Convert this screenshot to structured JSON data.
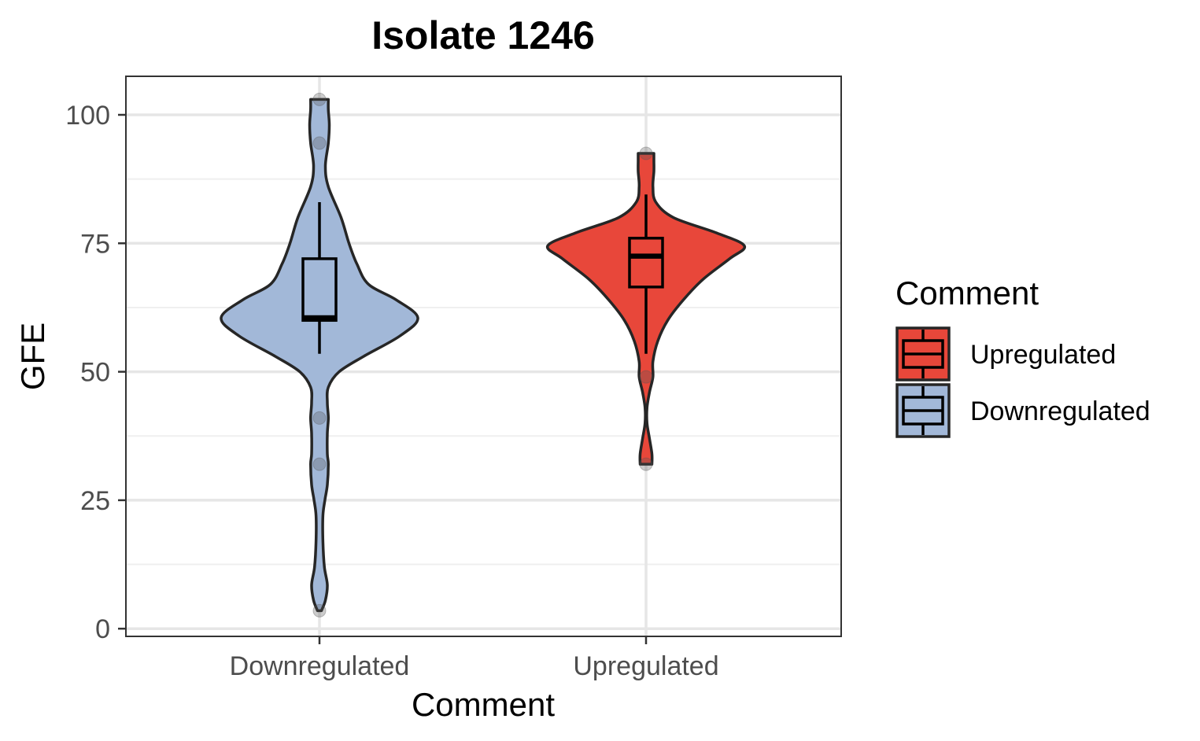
{
  "chart_data": {
    "type": "violin",
    "title": "Isolate 1246",
    "xlabel": "Comment",
    "ylabel": "GFE",
    "ylim": [
      -1.5,
      107.5
    ],
    "yticks": [
      0,
      25,
      50,
      75,
      100
    ],
    "categories": [
      "Downregulated",
      "Upregulated"
    ],
    "grid": true,
    "legend": {
      "title": "Comment",
      "position": "right",
      "entries": [
        {
          "label": "Upregulated",
          "color": "#E8473A"
        },
        {
          "label": "Downregulated",
          "color": "#A2B8D8"
        }
      ]
    },
    "series": [
      {
        "name": "Downregulated",
        "color": "#A2B8D8",
        "box": {
          "min": 53.5,
          "q1": 60,
          "median": 60.5,
          "q3": 72,
          "max": 83
        },
        "points": [
          103,
          94.5,
          41,
          32,
          3.5
        ],
        "violin_range": [
          3.5,
          103
        ],
        "density": [
          [
            3.5,
            0.02
          ],
          [
            5.5,
            0.06
          ],
          [
            8.5,
            0.08
          ],
          [
            12,
            0.05
          ],
          [
            17,
            0.035
          ],
          [
            22,
            0.035
          ],
          [
            25,
            0.055
          ],
          [
            28,
            0.08
          ],
          [
            32,
            0.09
          ],
          [
            34,
            0.08
          ],
          [
            38,
            0.08
          ],
          [
            41,
            0.09
          ],
          [
            44,
            0.08
          ],
          [
            47,
            0.09
          ],
          [
            50,
            0.2
          ],
          [
            53,
            0.45
          ],
          [
            57,
            0.82
          ],
          [
            60.5,
            1.0
          ],
          [
            64,
            0.78
          ],
          [
            67,
            0.5
          ],
          [
            71,
            0.38
          ],
          [
            75,
            0.3
          ],
          [
            80,
            0.22
          ],
          [
            86,
            0.09
          ],
          [
            90,
            0.06
          ],
          [
            94.5,
            0.09
          ],
          [
            98,
            0.1
          ],
          [
            101,
            0.09
          ],
          [
            103,
            0.09
          ]
        ]
      },
      {
        "name": "Upregulated",
        "color": "#E8473A",
        "box": {
          "min": 53.5,
          "q1": 66.5,
          "median": 72.5,
          "q3": 76,
          "max": 84.5
        },
        "points": [
          92.5,
          49,
          32
        ],
        "violin_range": [
          32,
          92.5
        ],
        "density": [
          [
            32,
            0.06
          ],
          [
            34,
            0.06
          ],
          [
            37,
            0.035
          ],
          [
            40,
            0.01
          ],
          [
            43,
            0.01
          ],
          [
            46,
            0.035
          ],
          [
            49,
            0.07
          ],
          [
            52,
            0.07
          ],
          [
            56,
            0.12
          ],
          [
            60,
            0.22
          ],
          [
            64,
            0.38
          ],
          [
            68,
            0.58
          ],
          [
            72,
            0.85
          ],
          [
            74.5,
            1.0
          ],
          [
            77,
            0.72
          ],
          [
            80,
            0.28
          ],
          [
            83,
            0.1
          ],
          [
            86,
            0.07
          ],
          [
            89,
            0.08
          ],
          [
            91,
            0.08
          ],
          [
            92.5,
            0.08
          ]
        ]
      }
    ]
  }
}
